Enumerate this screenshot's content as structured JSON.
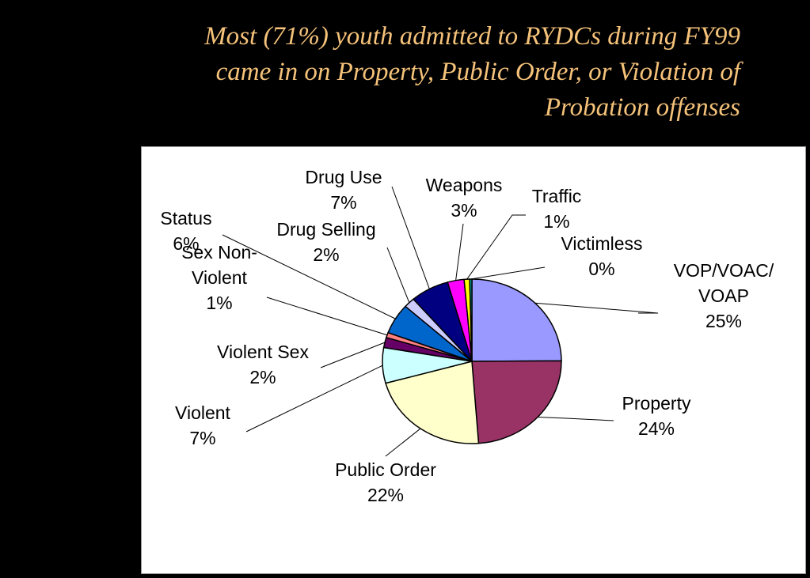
{
  "title": {
    "lines": [
      "Most (71%) youth admitted to RYDCs during FY99",
      "came in on Property, Public Order, or Violation of",
      "Probation offenses"
    ]
  },
  "chart_data": {
    "type": "pie",
    "title": "",
    "start_angle_deg": 0,
    "direction": "clockwise",
    "slices": [
      {
        "label": "VOP/VOAC/ VOAP",
        "label_lines": [
          "VOP/VOAC/",
          "VOAP"
        ],
        "pct_text": "25%",
        "value": 25,
        "color": "#9999ff"
      },
      {
        "label": "Property",
        "label_lines": [
          "Property"
        ],
        "pct_text": "24%",
        "value": 24,
        "color": "#993366"
      },
      {
        "label": "Public Order",
        "label_lines": [
          "Public Order"
        ],
        "pct_text": "22%",
        "value": 22,
        "color": "#ffffcc"
      },
      {
        "label": "Violent",
        "label_lines": [
          "Violent"
        ],
        "pct_text": "7%",
        "value": 7,
        "color": "#ccffff"
      },
      {
        "label": "Violent Sex",
        "label_lines": [
          "Violent Sex"
        ],
        "pct_text": "2%",
        "value": 2,
        "color": "#660066"
      },
      {
        "label": "Sex Non-Violent",
        "label_lines": [
          "Sex Non-",
          "Violent"
        ],
        "pct_text": "1%",
        "value": 1,
        "color": "#ff8080"
      },
      {
        "label": "Status",
        "label_lines": [
          "Status"
        ],
        "pct_text": "6%",
        "value": 6,
        "color": "#0066cc"
      },
      {
        "label": "Drug Selling",
        "label_lines": [
          "Drug Selling"
        ],
        "pct_text": "2%",
        "value": 2,
        "color": "#ccccff"
      },
      {
        "label": "Drug Use",
        "label_lines": [
          "Drug Use"
        ],
        "pct_text": "7%",
        "value": 7,
        "color": "#000080"
      },
      {
        "label": "Weapons",
        "label_lines": [
          "Weapons"
        ],
        "pct_text": "3%",
        "value": 3,
        "color": "#ff00ff"
      },
      {
        "label": "Traffic",
        "label_lines": [
          "Traffic"
        ],
        "pct_text": "1%",
        "value": 1,
        "color": "#ffff00"
      },
      {
        "label": "Victimless",
        "label_lines": [
          "Victimless"
        ],
        "pct_text": "0%",
        "value": 0.4,
        "color": "#00aaaa"
      }
    ]
  }
}
